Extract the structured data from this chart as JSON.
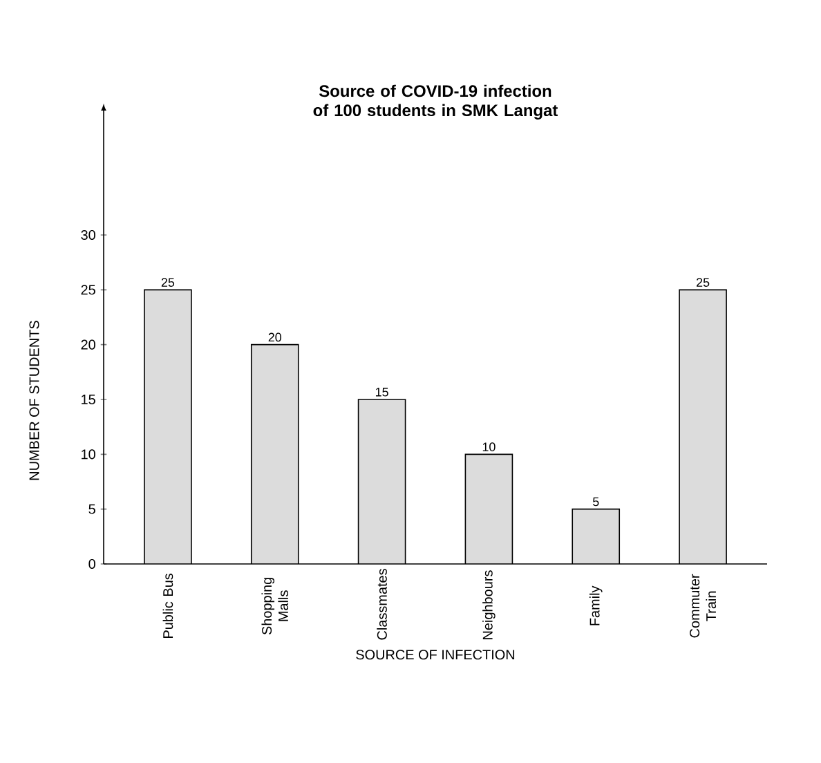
{
  "chart_data": {
    "type": "bar",
    "title": "Source of COVID-19 infection of 100 students in SMK Langat",
    "xlabel": "SOURCE OF INFECTION",
    "ylabel": "NUMBER OF STUDENTS",
    "categories": [
      "Public Bus",
      "Shopping Malls",
      "Classmates",
      "Neighbours",
      "Family",
      "Commuter Train"
    ],
    "values": [
      25,
      20,
      15,
      10,
      5,
      25
    ],
    "color": "#dcdcdc",
    "ylim": [
      0,
      41.4
    ],
    "yticks": [
      0,
      5,
      10,
      15,
      20,
      25,
      30
    ],
    "data_labels": true,
    "grid": false
  }
}
